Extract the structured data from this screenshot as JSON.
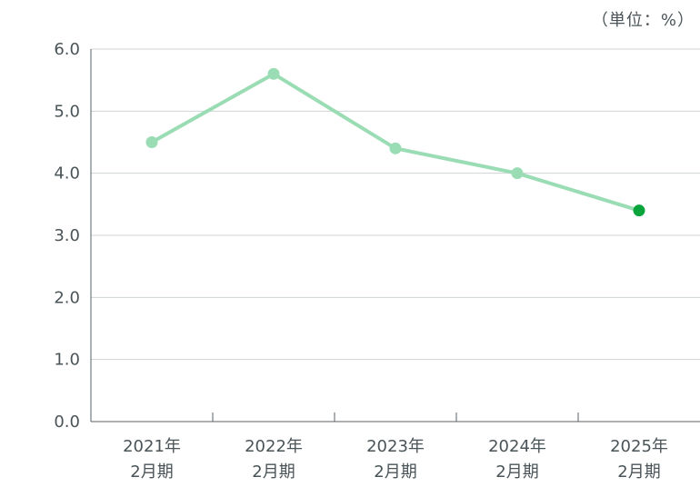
{
  "unit_label": "（単位：%）",
  "colors": {
    "line": "#9adcb3",
    "highlight_point": "#0aa43c",
    "grid": "#cfd3d4",
    "axis": "#5a6266",
    "text": "#4a5458"
  },
  "chart_data": {
    "type": "line",
    "categories": [
      [
        "2021年",
        "2月期"
      ],
      [
        "2022年",
        "2月期"
      ],
      [
        "2023年",
        "2月期"
      ],
      [
        "2024年",
        "2月期"
      ],
      [
        "2025年",
        "2月期"
      ]
    ],
    "series": [
      {
        "values": [
          4.5,
          5.6,
          4.4,
          4.0,
          3.4
        ]
      }
    ],
    "highlight_index": 4,
    "ylim": [
      0,
      6
    ],
    "yticks": [
      "0.0",
      "1.0",
      "2.0",
      "3.0",
      "4.0",
      "5.0",
      "6.0"
    ],
    "ytick_values": [
      0,
      1,
      2,
      3,
      4,
      5,
      6
    ],
    "grid": true
  }
}
